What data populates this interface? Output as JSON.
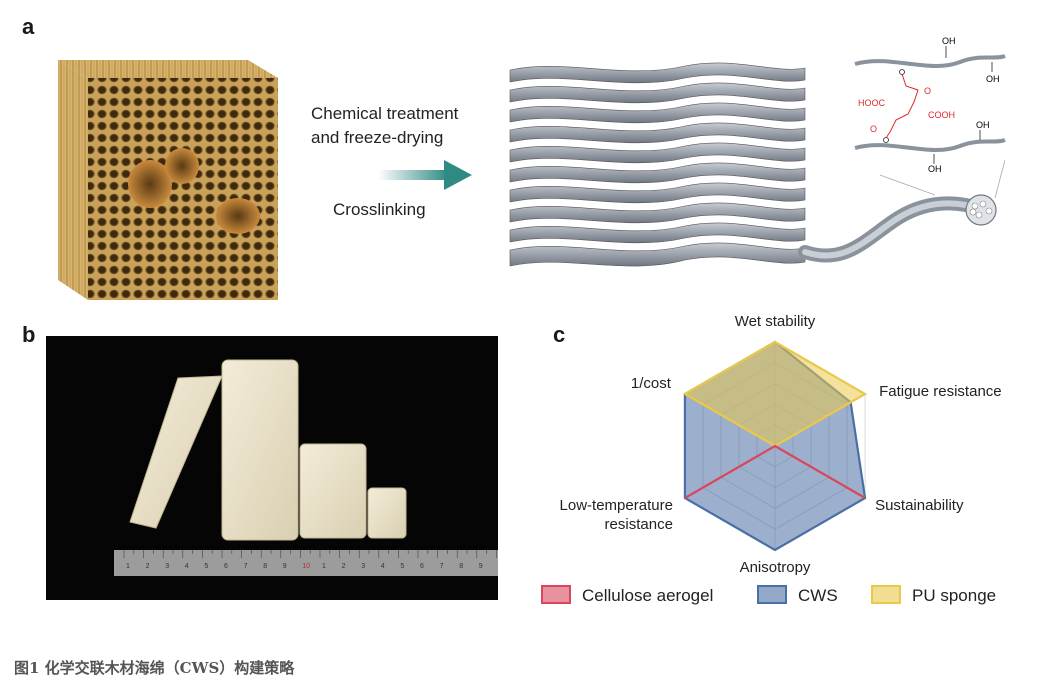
{
  "figure": {
    "panel_a": "a",
    "panel_b": "b",
    "panel_c": "c",
    "process_line1": "Chemical treatment",
    "process_line2": "and freeze-drying",
    "process_line3": "Crosslinking",
    "caption": "图1 化学交联木材海绵（CWS）构建策略",
    "chem_labels": {
      "oh1": "OH",
      "oh2": "OH",
      "oh3": "OH",
      "oh4": "OH",
      "hooc": "HOOC",
      "cooh": "COOH",
      "o1": "O",
      "o2": "O"
    },
    "ruler_numbers": [
      "1",
      "2",
      "3",
      "4",
      "5",
      "6",
      "7",
      "8",
      "9",
      "10",
      "1",
      "2",
      "3",
      "4",
      "5",
      "6",
      "7",
      "8",
      "9"
    ]
  },
  "chart_data": {
    "type": "radar",
    "axes": [
      "Wet stability",
      "Fatigue resistance",
      "Sustainability",
      "Anisotropy",
      "Low-temperature resistance",
      "1/cost"
    ],
    "axis_label_lines": [
      [
        "Wet stability"
      ],
      [
        "Fatigue resistance"
      ],
      [
        "Sustainability"
      ],
      [
        "Anisotropy"
      ],
      [
        "Low-temperature",
        "resistance"
      ],
      [
        "1/cost"
      ]
    ],
    "max": 5,
    "levels": 5,
    "series": [
      {
        "name": "Cellulose aerogel",
        "values": [
          0,
          0,
          5,
          0,
          5,
          0
        ],
        "color": "#d9475f"
      },
      {
        "name": "CWS",
        "values": [
          5,
          4.2,
          5,
          5,
          5,
          5
        ],
        "color": "#4a6fa5"
      },
      {
        "name": "PU sponge",
        "values": [
          5,
          5,
          0,
          0,
          0,
          5
        ],
        "color": "#e9c84a"
      }
    ],
    "legend": "bottom"
  }
}
